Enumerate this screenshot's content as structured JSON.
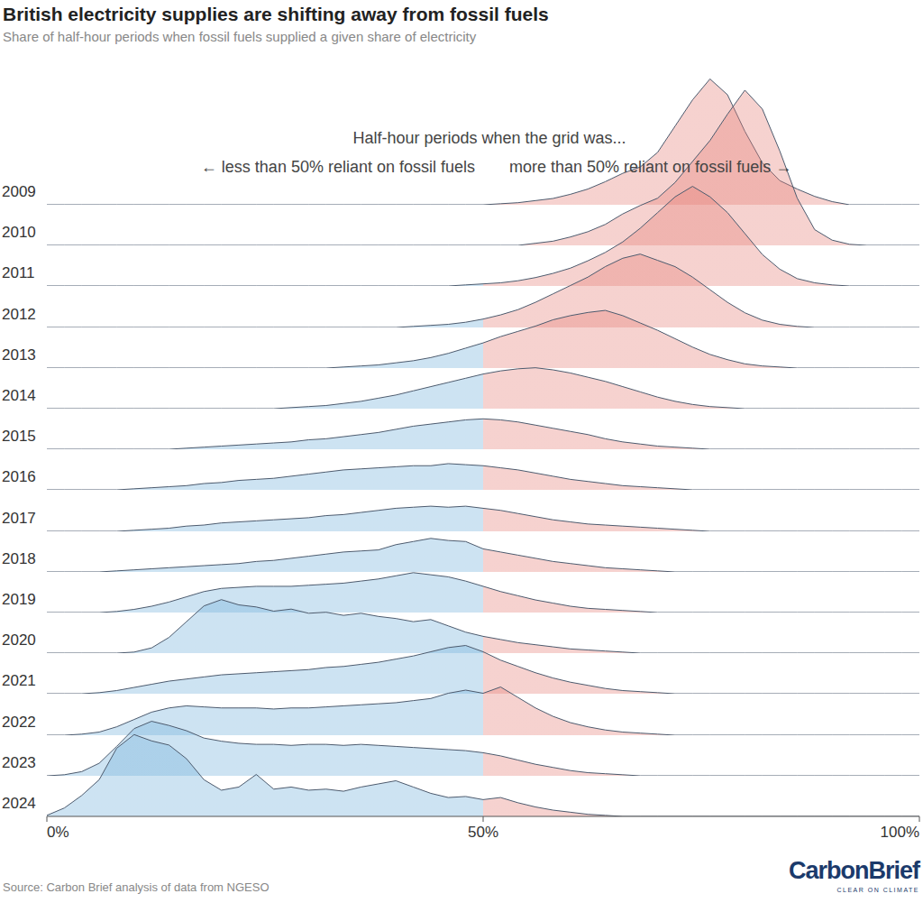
{
  "chart_data": {
    "type": "ridgeline",
    "title": "British electricity supplies are shifting away from fossil fuels",
    "subtitle": "Share of half-hour periods when fossil fuels supplied a given share of electricity",
    "annotations": [
      "Half-hour periods when the grid was...",
      "← less than 50% reliant on fossil fuels",
      "more than 50% reliant on fossil fuels →"
    ],
    "source": "Source: Carbon Brief analysis of data from NGESO",
    "logo": [
      "CarbonBrief",
      "CLEAR ON CLIMATE"
    ],
    "xlim": [
      0,
      100
    ],
    "xticks": [
      {
        "value": 0,
        "label": "0%"
      },
      {
        "value": 50,
        "label": "50%"
      },
      {
        "value": 100,
        "label": "100%"
      }
    ],
    "ylim": [
      0,
      16
    ],
    "tick_labels": "x",
    "threshold": 50,
    "colors": [
      "#70afda",
      "#e57e76"
    ],
    "x": [
      0,
      2,
      4,
      6,
      8,
      10,
      12,
      14,
      16,
      18,
      20,
      22,
      24,
      26,
      28,
      30,
      32,
      34,
      36,
      38,
      40,
      42,
      44,
      46,
      48,
      50,
      52,
      54,
      56,
      58,
      60,
      62,
      64,
      66,
      68,
      70,
      72,
      74,
      76,
      78,
      80,
      82,
      84,
      86,
      88,
      90,
      92,
      94,
      96,
      98,
      100
    ],
    "series": [
      {
        "name": "2009",
        "values": [
          0,
          0,
          0,
          0,
          0,
          0,
          0,
          0,
          0,
          0,
          0,
          0,
          0,
          0,
          0,
          0,
          0,
          0,
          0,
          0,
          0,
          0,
          0,
          0,
          0,
          0,
          0.1,
          0.2,
          0.4,
          0.6,
          1.0,
          1.5,
          2.2,
          3.0,
          3.6,
          5.0,
          7.5,
          10.0,
          12.0,
          10.5,
          7.0,
          4.0,
          2.3,
          1.5,
          0.8,
          0.3,
          0,
          0,
          0,
          0,
          0
        ]
      },
      {
        "name": "2010",
        "values": [
          0,
          0,
          0,
          0,
          0,
          0,
          0,
          0,
          0,
          0,
          0,
          0,
          0,
          0,
          0,
          0,
          0,
          0,
          0,
          0,
          0,
          0,
          0,
          0,
          0,
          0,
          0,
          0,
          0.2,
          0.4,
          0.8,
          1.3,
          2.0,
          3.0,
          3.8,
          4.5,
          6.0,
          8.0,
          10.0,
          12.5,
          14.8,
          13.0,
          9.0,
          4.5,
          1.5,
          0.5,
          0.1,
          0,
          0,
          0,
          0
        ]
      },
      {
        "name": "2011",
        "values": [
          0,
          0,
          0,
          0,
          0,
          0,
          0,
          0,
          0,
          0,
          0,
          0,
          0,
          0,
          0,
          0,
          0,
          0,
          0,
          0,
          0,
          0,
          0,
          0,
          0.1,
          0.2,
          0.3,
          0.5,
          0.8,
          1.2,
          1.7,
          2.4,
          3.2,
          4.2,
          5.5,
          7.0,
          8.5,
          9.5,
          8.5,
          7.0,
          5.0,
          3.0,
          1.6,
          0.7,
          0.3,
          0.1,
          0,
          0,
          0,
          0,
          0
        ]
      },
      {
        "name": "2012",
        "values": [
          0,
          0,
          0,
          0,
          0,
          0,
          0,
          0,
          0,
          0,
          0,
          0,
          0,
          0,
          0,
          0,
          0,
          0,
          0,
          0,
          0,
          0.1,
          0.2,
          0.3,
          0.5,
          0.8,
          1.2,
          1.7,
          2.4,
          3.2,
          4.0,
          4.8,
          5.8,
          6.6,
          7.0,
          6.4,
          5.8,
          4.8,
          3.6,
          2.4,
          1.4,
          0.7,
          0.3,
          0.1,
          0,
          0,
          0,
          0,
          0,
          0,
          0
        ]
      },
      {
        "name": "2013",
        "values": [
          0,
          0,
          0,
          0,
          0,
          0,
          0,
          0,
          0,
          0,
          0,
          0,
          0,
          0,
          0,
          0,
          0,
          0.1,
          0.2,
          0.3,
          0.5,
          0.7,
          1.0,
          1.4,
          1.9,
          2.4,
          3.0,
          3.5,
          4.0,
          4.6,
          5.0,
          5.3,
          5.5,
          5.0,
          4.3,
          3.6,
          2.8,
          2.0,
          1.3,
          0.8,
          0.4,
          0.2,
          0.1,
          0,
          0,
          0,
          0,
          0,
          0,
          0,
          0
        ]
      },
      {
        "name": "2014",
        "values": [
          0,
          0,
          0,
          0,
          0,
          0,
          0,
          0,
          0,
          0,
          0,
          0,
          0,
          0,
          0.1,
          0.2,
          0.3,
          0.5,
          0.7,
          1.0,
          1.3,
          1.7,
          2.1,
          2.5,
          2.9,
          3.3,
          3.6,
          3.8,
          3.9,
          3.7,
          3.4,
          3.0,
          2.6,
          2.1,
          1.6,
          1.1,
          0.7,
          0.4,
          0.2,
          0.1,
          0,
          0,
          0,
          0,
          0,
          0,
          0,
          0,
          0,
          0,
          0
        ]
      },
      {
        "name": "2015",
        "values": [
          0,
          0,
          0,
          0,
          0,
          0,
          0,
          0,
          0.1,
          0.2,
          0.3,
          0.4,
          0.5,
          0.6,
          0.7,
          0.9,
          1.0,
          1.2,
          1.4,
          1.6,
          1.9,
          2.2,
          2.4,
          2.6,
          2.8,
          2.9,
          2.8,
          2.6,
          2.3,
          2.0,
          1.7,
          1.4,
          1.0,
          0.7,
          0.5,
          0.3,
          0.2,
          0.1,
          0,
          0,
          0,
          0,
          0,
          0,
          0,
          0,
          0,
          0,
          0,
          0,
          0
        ]
      },
      {
        "name": "2016",
        "values": [
          0,
          0,
          0,
          0,
          0,
          0.1,
          0.2,
          0.3,
          0.4,
          0.6,
          0.7,
          0.9,
          1.0,
          1.1,
          1.3,
          1.5,
          1.7,
          1.9,
          2.0,
          2.1,
          2.2,
          2.3,
          2.3,
          2.5,
          2.4,
          2.3,
          2.1,
          1.9,
          1.6,
          1.3,
          1.0,
          0.8,
          0.6,
          0.4,
          0.3,
          0.2,
          0.1,
          0,
          0,
          0,
          0,
          0,
          0,
          0,
          0,
          0,
          0,
          0,
          0,
          0,
          0
        ]
      },
      {
        "name": "2017",
        "values": [
          0,
          0,
          0,
          0,
          0,
          0.1,
          0.2,
          0.3,
          0.5,
          0.6,
          0.8,
          0.9,
          1.0,
          1.1,
          1.2,
          1.3,
          1.5,
          1.6,
          1.8,
          2.0,
          2.2,
          2.3,
          2.4,
          2.3,
          2.4,
          2.2,
          2.0,
          1.7,
          1.4,
          1.1,
          0.9,
          0.7,
          0.6,
          0.5,
          0.4,
          0.3,
          0.2,
          0.1,
          0,
          0,
          0,
          0,
          0,
          0,
          0,
          0,
          0,
          0,
          0,
          0,
          0
        ]
      },
      {
        "name": "2018",
        "values": [
          0,
          0,
          0,
          0,
          0.1,
          0.2,
          0.3,
          0.4,
          0.5,
          0.6,
          0.7,
          0.8,
          1.0,
          1.1,
          1.3,
          1.5,
          1.7,
          1.9,
          2.0,
          2.1,
          2.6,
          2.9,
          3.2,
          3.0,
          2.9,
          2.2,
          1.9,
          1.6,
          1.3,
          1.0,
          0.8,
          0.6,
          0.4,
          0.3,
          0.2,
          0.1,
          0,
          0,
          0,
          0,
          0,
          0,
          0,
          0,
          0,
          0,
          0,
          0,
          0,
          0,
          0
        ]
      },
      {
        "name": "2019",
        "values": [
          0,
          0,
          0,
          0,
          0.1,
          0.3,
          0.6,
          1.0,
          1.5,
          2.0,
          2.3,
          2.4,
          2.5,
          2.5,
          2.5,
          2.6,
          2.7,
          2.8,
          3.0,
          3.2,
          3.5,
          3.8,
          3.6,
          3.4,
          3.0,
          2.5,
          2.0,
          1.6,
          1.2,
          0.9,
          0.6,
          0.4,
          0.3,
          0.2,
          0.1,
          0,
          0,
          0,
          0,
          0,
          0,
          0,
          0,
          0,
          0,
          0,
          0,
          0,
          0,
          0,
          0
        ]
      },
      {
        "name": "2020",
        "values": [
          0,
          0,
          0,
          0,
          0,
          0.1,
          0.5,
          1.5,
          3.0,
          4.5,
          5.1,
          4.6,
          4.4,
          4.0,
          4.2,
          3.8,
          3.9,
          3.6,
          3.8,
          3.5,
          3.3,
          3.0,
          3.2,
          2.6,
          2.0,
          1.6,
          1.3,
          1.0,
          0.8,
          0.6,
          0.4,
          0.3,
          0.2,
          0.1,
          0,
          0,
          0,
          0,
          0,
          0,
          0,
          0,
          0,
          0,
          0,
          0,
          0,
          0,
          0,
          0,
          0
        ]
      },
      {
        "name": "2021",
        "values": [
          0,
          0,
          0,
          0.1,
          0.3,
          0.6,
          0.9,
          1.2,
          1.4,
          1.6,
          1.8,
          1.9,
          2.0,
          2.1,
          2.2,
          2.3,
          2.5,
          2.6,
          2.8,
          3.0,
          3.3,
          3.6,
          4.0,
          4.4,
          4.6,
          4.0,
          3.2,
          2.6,
          2.0,
          1.5,
          1.1,
          0.8,
          0.5,
          0.3,
          0.2,
          0.1,
          0,
          0,
          0,
          0,
          0,
          0,
          0,
          0,
          0,
          0,
          0,
          0,
          0,
          0,
          0
        ]
      },
      {
        "name": "2022",
        "values": [
          0,
          0,
          0.1,
          0.3,
          0.8,
          1.5,
          2.2,
          2.6,
          2.8,
          2.7,
          2.6,
          2.6,
          2.6,
          2.5,
          2.6,
          2.6,
          2.7,
          2.8,
          2.9,
          3.0,
          3.1,
          3.3,
          3.5,
          4.0,
          4.3,
          4.0,
          4.6,
          3.6,
          2.6,
          1.8,
          1.2,
          0.8,
          0.5,
          0.3,
          0.2,
          0.1,
          0,
          0,
          0,
          0,
          0,
          0,
          0,
          0,
          0,
          0,
          0,
          0,
          0,
          0,
          0
        ]
      },
      {
        "name": "2023",
        "values": [
          0,
          0.1,
          0.4,
          1.2,
          2.8,
          4.5,
          5.2,
          4.8,
          4.3,
          3.6,
          3.3,
          3.1,
          3.0,
          3.0,
          2.9,
          3.0,
          3.0,
          2.9,
          3.0,
          2.9,
          2.8,
          2.7,
          2.6,
          2.5,
          2.4,
          2.2,
          1.9,
          1.5,
          1.1,
          0.8,
          0.5,
          0.3,
          0.2,
          0.1,
          0,
          0,
          0,
          0,
          0,
          0,
          0,
          0,
          0,
          0,
          0,
          0,
          0,
          0,
          0,
          0,
          0
        ]
      },
      {
        "name": "2024",
        "values": [
          0.1,
          0.8,
          2.0,
          3.5,
          6.5,
          7.8,
          7.2,
          6.8,
          5.5,
          3.5,
          2.5,
          2.8,
          4.0,
          2.6,
          2.8,
          2.5,
          2.6,
          2.4,
          2.8,
          3.1,
          3.4,
          2.8,
          2.2,
          1.8,
          1.9,
          1.6,
          1.8,
          1.3,
          0.9,
          0.6,
          0.4,
          0.2,
          0.1,
          0,
          0,
          0,
          0,
          0,
          0,
          0,
          0,
          0,
          0,
          0,
          0,
          0,
          0,
          0,
          0,
          0,
          0
        ]
      }
    ]
  }
}
